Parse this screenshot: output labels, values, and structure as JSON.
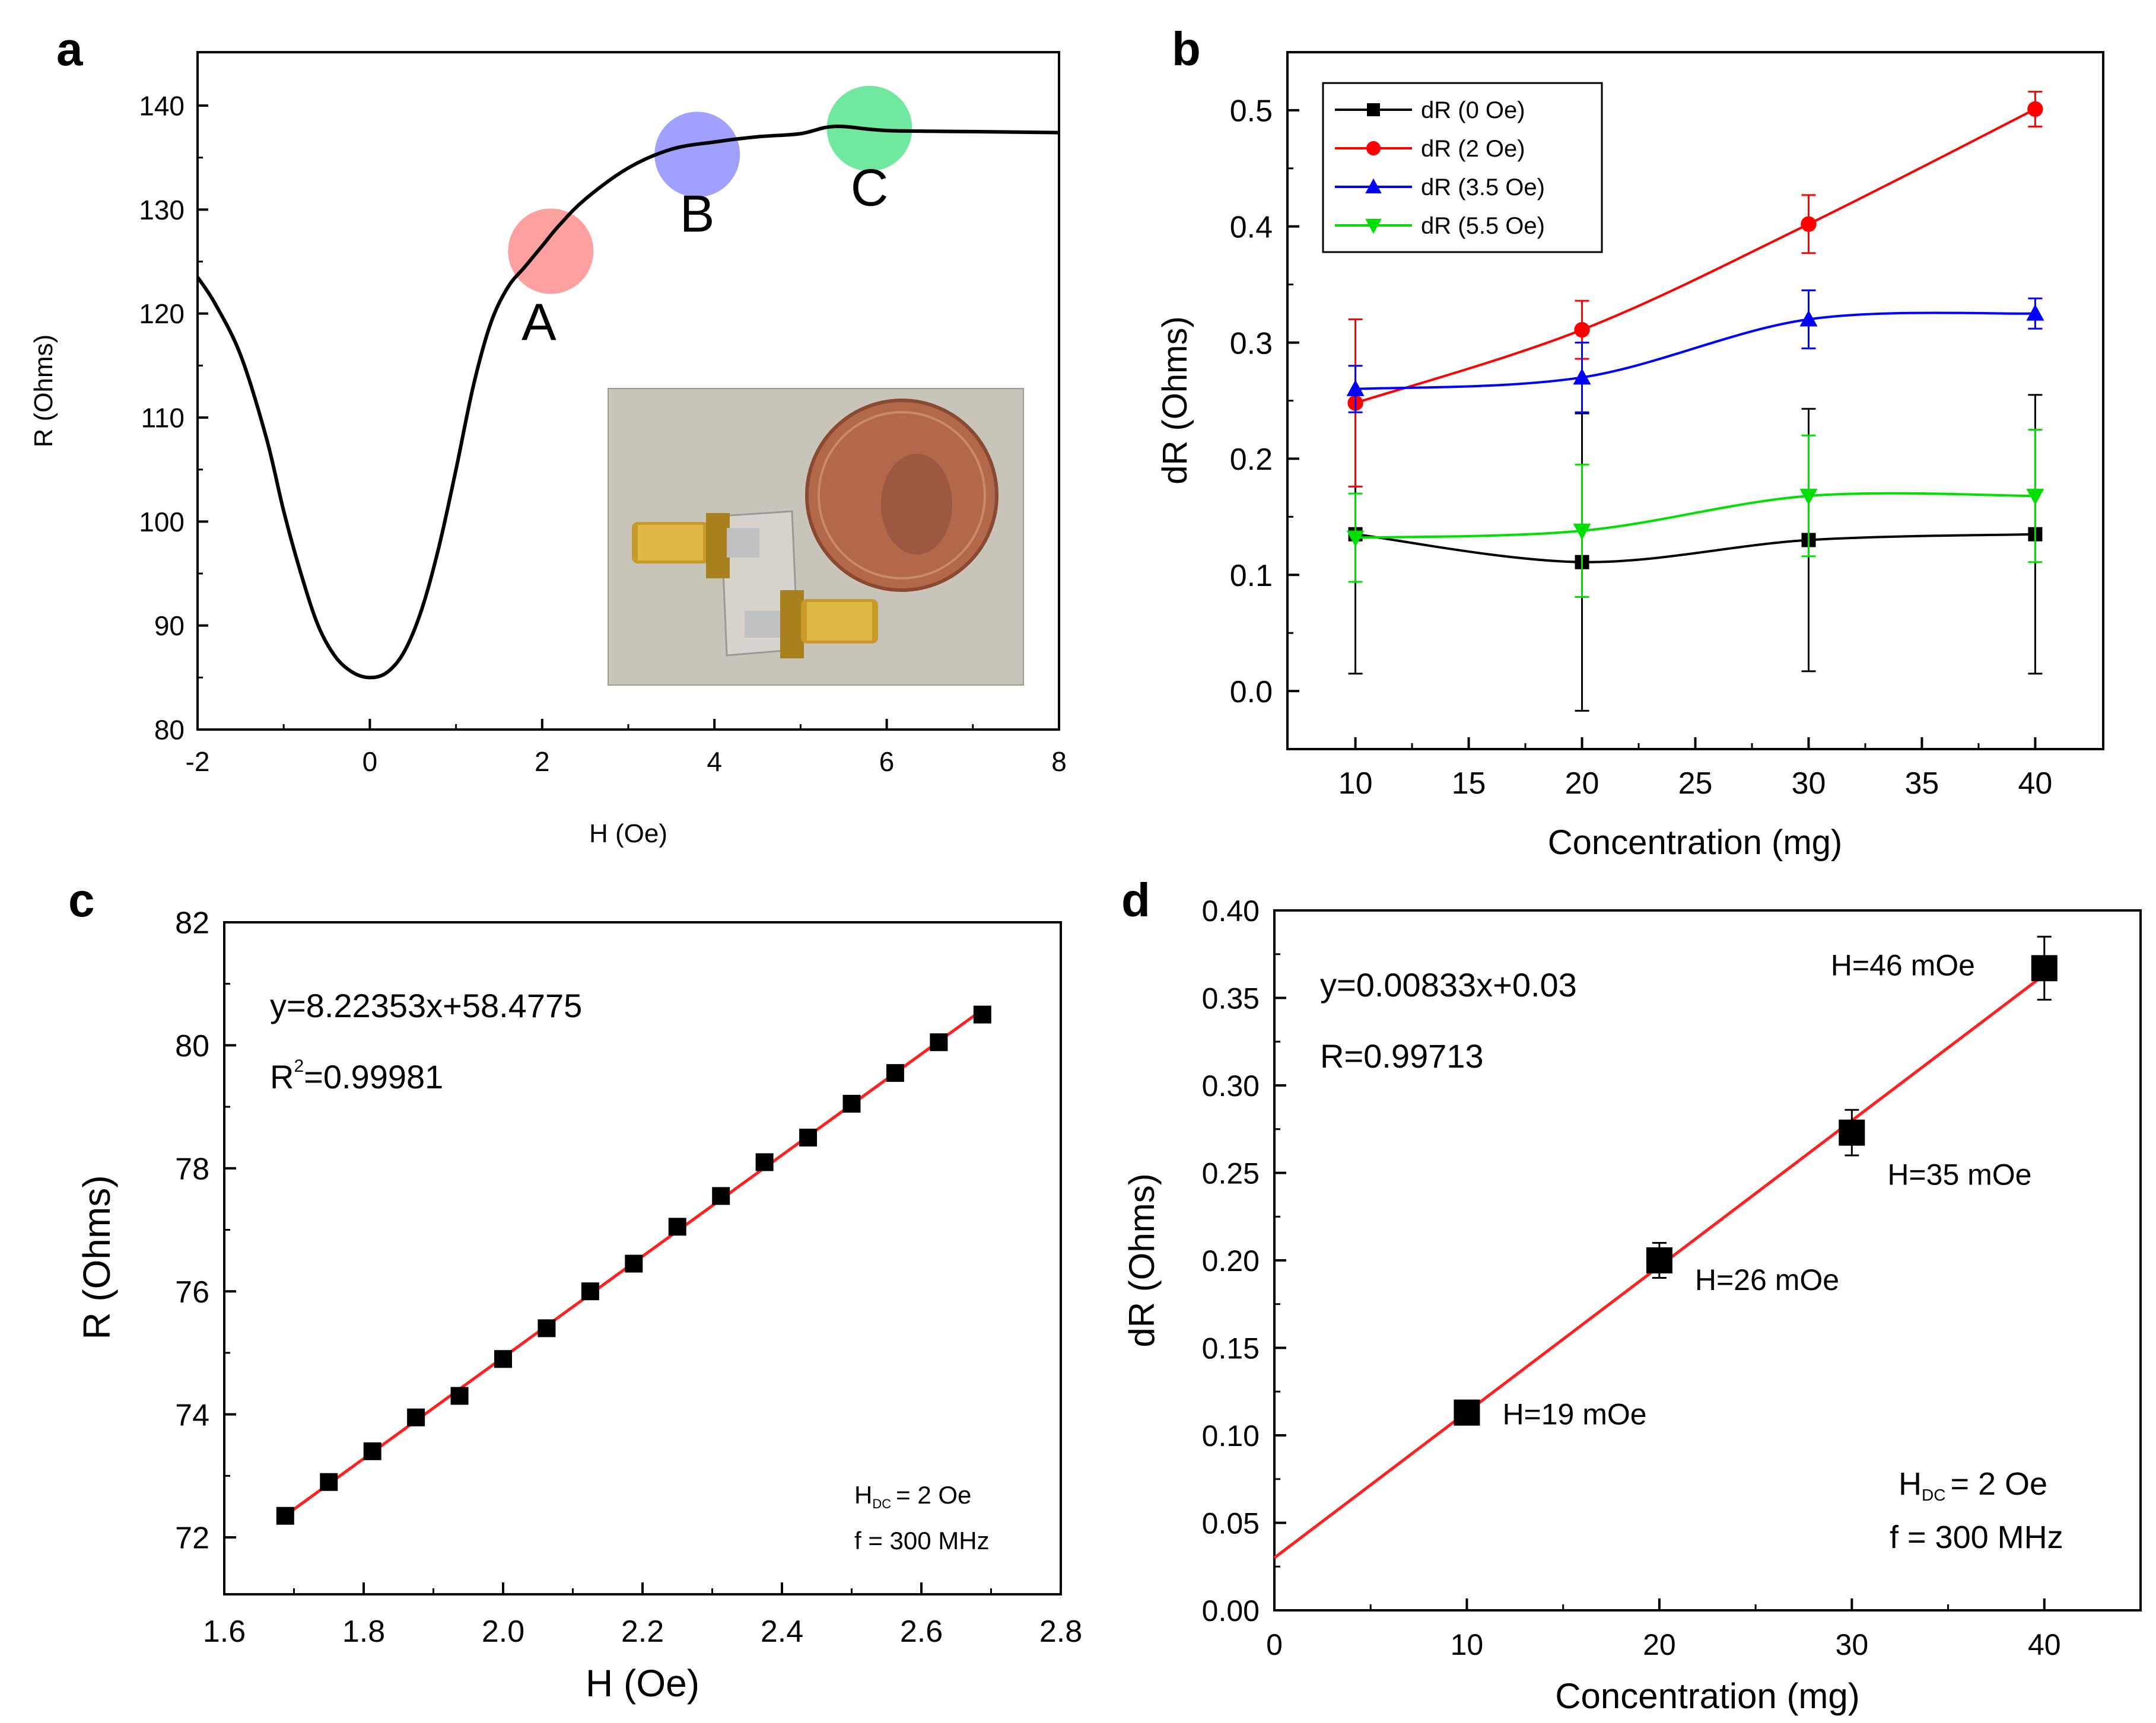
{
  "colors": {
    "black": "#000000",
    "red": "#ff0000",
    "blue": "#0000ff",
    "green": "#00e000",
    "fit_red": "#ff2020",
    "marker_a": "#ff8080",
    "marker_b": "#8080ff",
    "marker_c": "#40e080"
  },
  "chart_data": [
    {
      "panel": "a",
      "type": "line",
      "xlabel": "H (Oe)",
      "ylabel": "R (Ohms)",
      "xlim": [
        -2,
        8
      ],
      "ylim": [
        80,
        145
      ],
      "xticks": [
        "-2",
        "0",
        "2",
        "4",
        "6",
        "8"
      ],
      "yticks": [
        "80",
        "90",
        "100",
        "110",
        "120",
        "130",
        "140"
      ],
      "grid": false,
      "series": [
        {
          "x": [
            -2,
            -1.8,
            -1.5,
            -1.2,
            -1.0,
            -0.8,
            -0.6,
            -0.4,
            -0.2,
            0,
            0.2,
            0.4,
            0.6,
            0.8,
            1.0,
            1.2,
            1.4,
            1.6,
            1.8,
            2.0,
            2.2,
            2.5,
            3.0,
            3.5,
            4.0,
            4.5,
            5.0,
            5.4,
            6.0,
            7.0,
            8.0
          ],
          "y": [
            123.5,
            121,
            116,
            108,
            101,
            95,
            90,
            87,
            85.5,
            85,
            85.5,
            87.5,
            91.5,
            97.5,
            105,
            113,
            119,
            122.5,
            124.5,
            126.5,
            128.5,
            131,
            134,
            135.8,
            136.5,
            137,
            137.3,
            138,
            137.6,
            137.5,
            137.4
          ]
        }
      ],
      "annotations": [
        {
          "label": "A",
          "x": 2.1,
          "y": 126
        },
        {
          "label": "B",
          "x": 3.8,
          "y": 135.3
        },
        {
          "label": "C",
          "x": 5.8,
          "y": 137.8
        }
      ],
      "inset": "photo of sensor with two SMA connectors next to a penny"
    },
    {
      "panel": "b",
      "type": "line",
      "xlabel": "Concentration (mg)",
      "ylabel": "dR (Ohms)",
      "xlim": [
        7,
        43
      ],
      "ylim": [
        -0.05,
        0.55
      ],
      "xticks": [
        "10",
        "15",
        "20",
        "25",
        "30",
        "35",
        "40"
      ],
      "yticks": [
        "0.0",
        "0.1",
        "0.2",
        "0.3",
        "0.4",
        "0.5"
      ],
      "legend_position": "top-left",
      "categories": [
        10,
        20,
        30,
        40
      ],
      "series": [
        {
          "name": "dR (0 Oe)",
          "color": "#000000",
          "marker": "square",
          "values": [
            0.135,
            0.111,
            0.13,
            0.135
          ],
          "errors": [
            0.12,
            0.128,
            0.113,
            0.12
          ]
        },
        {
          "name": "dR (2 Oe)",
          "color": "#ff0000",
          "marker": "circle",
          "values": [
            0.248,
            0.311,
            0.402,
            0.501
          ],
          "errors": [
            0.072,
            0.025,
            0.025,
            0.015
          ]
        },
        {
          "name": "dR (3.5 Oe)",
          "color": "#0000ff",
          "marker": "triangle-up",
          "values": [
            0.26,
            0.27,
            0.32,
            0.325
          ],
          "errors": [
            0.02,
            0.03,
            0.025,
            0.013
          ]
        },
        {
          "name": "dR (5.5 Oe)",
          "color": "#00e000",
          "marker": "triangle-down",
          "values": [
            0.132,
            0.138,
            0.168,
            0.168
          ],
          "errors": [
            0.038,
            0.057,
            0.052,
            0.057
          ]
        }
      ]
    },
    {
      "panel": "c",
      "type": "scatter",
      "xlabel": "H (Oe)",
      "ylabel": "R (Ohms)",
      "xlim": [
        1.6,
        2.8
      ],
      "ylim": [
        71,
        82
      ],
      "xticks": [
        "1.6",
        "1.8",
        "2.0",
        "2.2",
        "2.4",
        "2.6",
        "2.8"
      ],
      "yticks": [
        "72",
        "74",
        "76",
        "78",
        "80",
        "82"
      ],
      "x": [
        1.6875,
        1.75,
        1.8125,
        1.875,
        1.9375,
        2.0,
        2.0625,
        2.125,
        2.1875,
        2.25,
        2.3125,
        2.375,
        2.4375,
        2.5,
        2.5625,
        2.625,
        2.6875
      ],
      "y": [
        72.35,
        72.9,
        73.4,
        73.95,
        74.3,
        74.9,
        75.4,
        76.0,
        76.45,
        77.05,
        77.55,
        78.1,
        78.5,
        79.05,
        79.55,
        80.05,
        80.5
      ],
      "fit": {
        "slope": 8.22353,
        "intercept": 58.4775,
        "x_range": [
          1.6875,
          2.6875
        ]
      },
      "equation": "y=8.22353x+58.4775",
      "r2_prefix": "R",
      "r2_sup": "2",
      "r2_value": "=0.99981",
      "note_h": "H",
      "note_h_sub": "DC",
      "note_h_value": "= 2 Oe",
      "note_f": "f = 300 MHz"
    },
    {
      "panel": "d",
      "type": "scatter",
      "xlabel": "Concentration (mg)",
      "ylabel": "dR (Ohms)",
      "xlim": [
        0,
        45
      ],
      "ylim": [
        0,
        0.4
      ],
      "xticks": [
        "0",
        "10",
        "20",
        "30",
        "40"
      ],
      "yticks": [
        "0.00",
        "0.05",
        "0.10",
        "0.15",
        "0.20",
        "0.25",
        "0.30",
        "0.35",
        "0.40"
      ],
      "x": [
        10,
        20,
        30,
        40
      ],
      "y": [
        0.113,
        0.2,
        0.273,
        0.367
      ],
      "errors": [
        0.005,
        0.01,
        0.013,
        0.018
      ],
      "point_labels": [
        "H=19 mOe",
        "H=26 mOe",
        "H=35 mOe",
        "H=46 mOe"
      ],
      "fit": {
        "slope": 0.00833,
        "intercept": 0.03,
        "x_range": [
          0,
          40
        ]
      },
      "equation": "y=0.00833x+0.03",
      "r_text": "R=0.99713",
      "note_h": "H",
      "note_h_sub": "DC",
      "note_h_value": "= 2 Oe",
      "note_f": "f = 300 MHz"
    }
  ]
}
